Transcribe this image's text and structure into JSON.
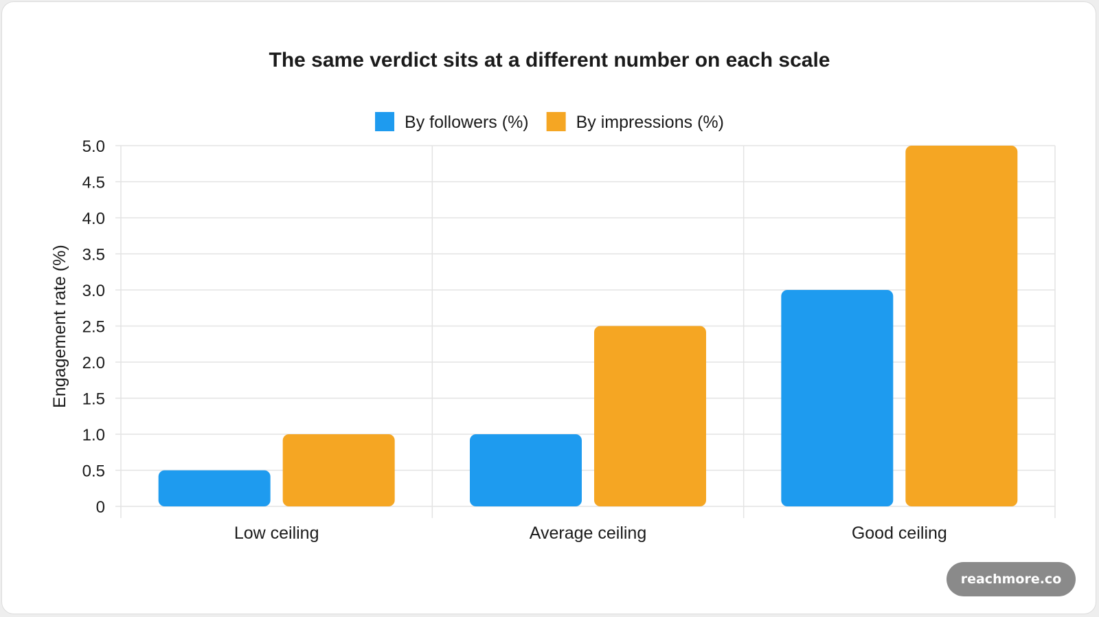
{
  "chart_data": {
    "type": "bar",
    "title": "The same verdict sits at a different number on each scale",
    "ylabel": "Engagement rate (%)",
    "xlabel": "",
    "categories": [
      "Low ceiling",
      "Average ceiling",
      "Good ceiling"
    ],
    "series": [
      {
        "name": "By followers (%)",
        "values": [
          0.5,
          1.0,
          3.0
        ],
        "color": "#1e9bef"
      },
      {
        "name": "By impressions (%)",
        "values": [
          1.0,
          2.5,
          5.0
        ],
        "color": "#f5a623"
      }
    ],
    "ylim": [
      0,
      5
    ],
    "yticks": [
      "0",
      "0.5",
      "1.0",
      "1.5",
      "2.0",
      "2.5",
      "3.0",
      "3.5",
      "4.0",
      "4.5",
      "5.0"
    ],
    "grid": true,
    "legend_position": "top-center"
  },
  "brand": {
    "label": "reachmore.co"
  }
}
